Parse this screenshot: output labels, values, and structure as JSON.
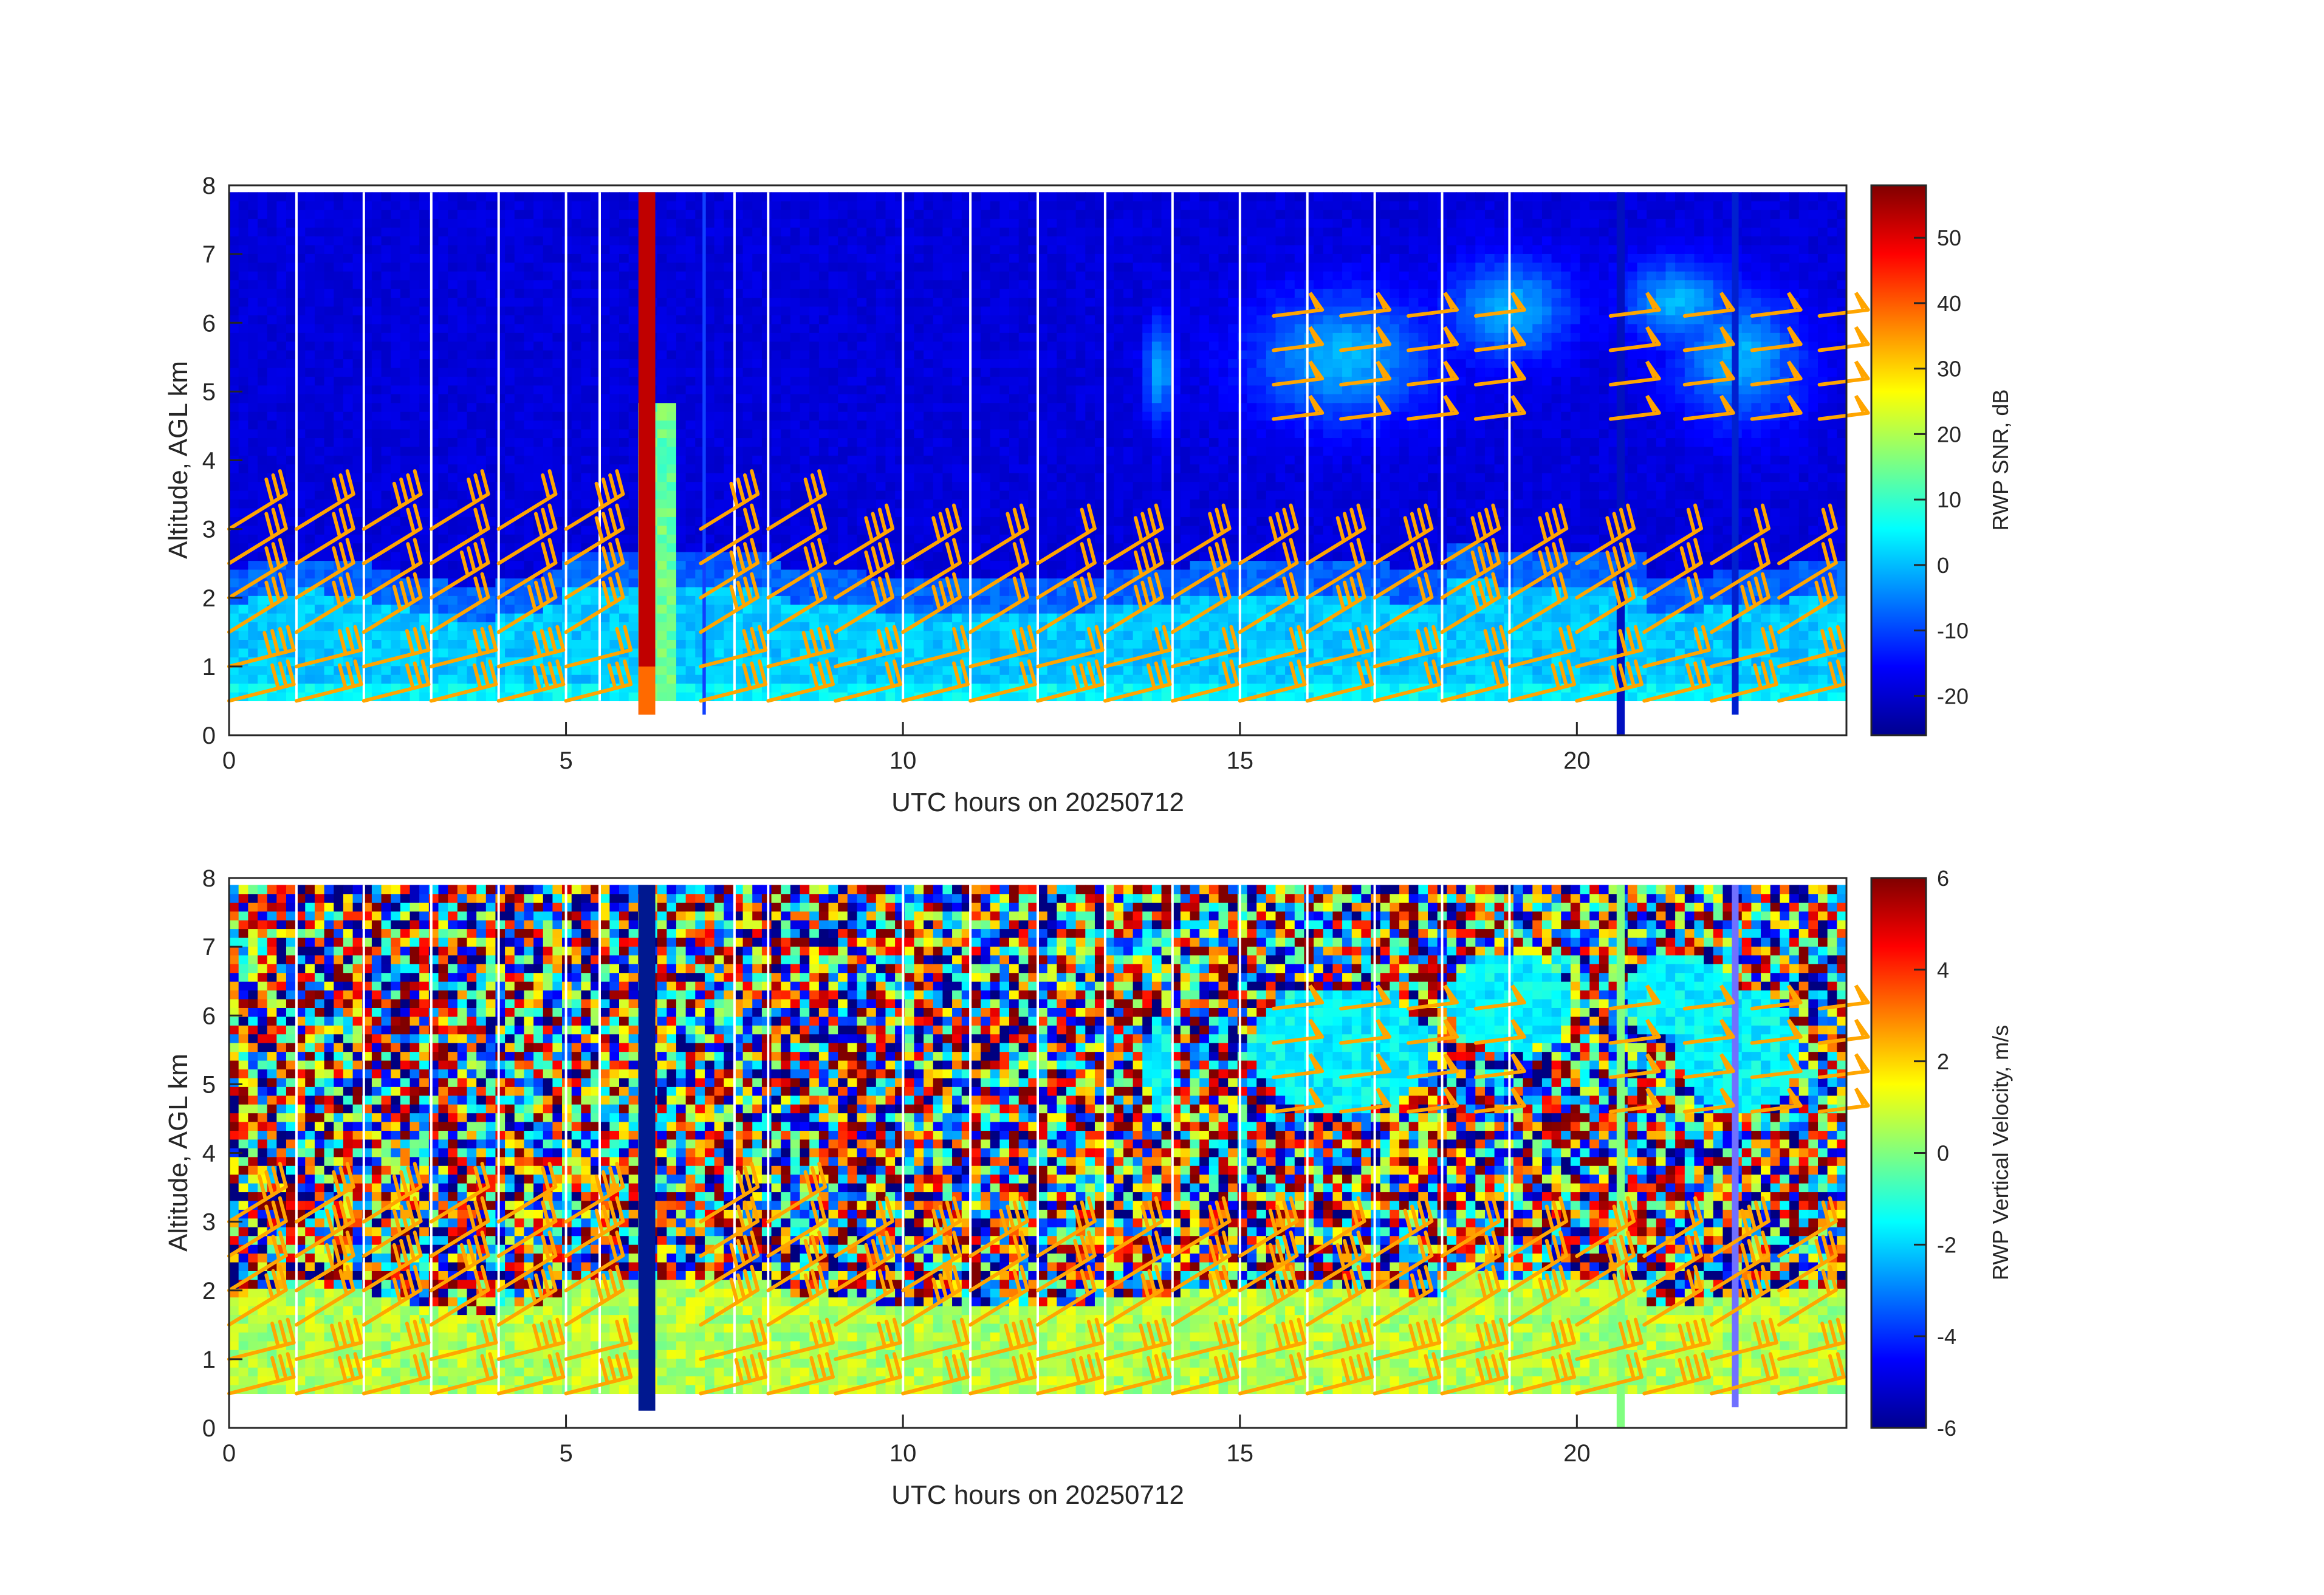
{
  "chart_data": [
    {
      "type": "heatmap",
      "panel": "top",
      "xlabel": "UTC hours on 20250712",
      "ylabel": "Altitude, AGL km",
      "xlim": [
        0,
        24
      ],
      "ylim": [
        0,
        8
      ],
      "xticks": [
        0,
        5,
        10,
        15,
        20
      ],
      "yticks": [
        0,
        1,
        2,
        3,
        4,
        5,
        6,
        7,
        8
      ],
      "colorbar": {
        "label": "RWP SNR, dB",
        "range": [
          -26,
          58
        ],
        "ticks": [
          -20,
          -10,
          0,
          10,
          20,
          30,
          40,
          50
        ],
        "colormap": "jet"
      },
      "grid": false,
      "data_gap_hours": [
        1.0,
        2.0,
        3.0,
        4.0,
        5.0,
        5.5,
        7.5,
        8.0,
        10.0,
        11.0,
        12.0,
        13.0,
        14.0,
        15.0,
        16.0,
        17.0,
        18.0,
        19.0
      ],
      "overlay": {
        "type": "wind-barbs",
        "color": "#ffa500",
        "heights_km": [
          0.5,
          1.0,
          1.5,
          2.0,
          2.5,
          3.0
        ],
        "times_hours": [
          0.0,
          1.0,
          2.0,
          3.0,
          4.0,
          5.0,
          7.0,
          8.0,
          9.0,
          10.0,
          11.0,
          12.0,
          13.0,
          14.0,
          15.0,
          16.0,
          17.0,
          18.0,
          19.0,
          20.0,
          21.0,
          22.0,
          23.0
        ]
      }
    },
    {
      "type": "heatmap",
      "panel": "bottom",
      "xlabel": "UTC hours on 20250712",
      "ylabel": "Altitude, AGL km",
      "xlim": [
        0,
        24
      ],
      "ylim": [
        0,
        8
      ],
      "xticks": [
        0,
        5,
        10,
        15,
        20
      ],
      "yticks": [
        0,
        1,
        2,
        3,
        4,
        5,
        6,
        7,
        8
      ],
      "colorbar": {
        "label": "RWP Vertical Velocity, m/s",
        "range": [
          -6,
          6
        ],
        "ticks": [
          -6,
          -4,
          -2,
          0,
          2,
          4,
          6
        ],
        "colormap": "jet"
      },
      "grid": false,
      "overlay": {
        "type": "wind-barbs",
        "color": "#ffa500"
      }
    }
  ],
  "colors": {
    "barb": "#ffa500",
    "axis": "#262626",
    "background": "#ffffff"
  }
}
